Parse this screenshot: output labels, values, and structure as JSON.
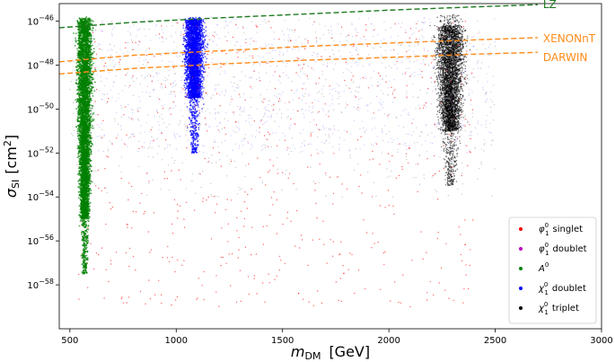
{
  "chart_data": {
    "type": "scatter",
    "title": "",
    "xlabel": {
      "main": "m",
      "sub": "DM",
      "unit": "[GeV]"
    },
    "ylabel": {
      "main": "σ",
      "sub": "SI",
      "unit": "[cm",
      "unit_sup": "2",
      "unit_close": "]"
    },
    "x_range": [
      450,
      3000
    ],
    "y_log_range": [
      -60,
      -45.2
    ],
    "x_ticks": [
      {
        "value": 500,
        "label": "500"
      },
      {
        "value": 1000,
        "label": "1000"
      },
      {
        "value": 1500,
        "label": "1500"
      },
      {
        "value": 2000,
        "label": "2000"
      },
      {
        "value": 2500,
        "label": "2500"
      },
      {
        "value": 3000,
        "label": "3000"
      }
    ],
    "y_ticks": [
      {
        "exp": -46,
        "base": "10",
        "sup": "−46"
      },
      {
        "exp": -48,
        "base": "10",
        "sup": "−48"
      },
      {
        "exp": -50,
        "base": "10",
        "sup": "−50"
      },
      {
        "exp": -52,
        "base": "10",
        "sup": "−52"
      },
      {
        "exp": -54,
        "base": "10",
        "sup": "−54"
      },
      {
        "exp": -56,
        "base": "10",
        "sup": "−56"
      },
      {
        "exp": -58,
        "base": "10",
        "sup": "−58"
      }
    ],
    "curves": [
      {
        "name": "LZ",
        "color": "#1f7a1f",
        "x": [
          450,
          800,
          1200,
          1600,
          2000,
          2400,
          2700
        ],
        "log_y": [
          -46.3,
          -46.05,
          -45.85,
          -45.68,
          -45.5,
          -45.35,
          -45.25
        ],
        "label_x": 2700,
        "label_log_y": -45.25
      },
      {
        "name": "XENONnT",
        "color": "#ff8c1a",
        "x": [
          450,
          800,
          1200,
          1600,
          2000,
          2400,
          2700
        ],
        "log_y": [
          -47.85,
          -47.55,
          -47.35,
          -47.15,
          -47.0,
          -46.85,
          -46.75
        ],
        "label_x": 2700,
        "label_log_y": -46.8
      },
      {
        "name": "DARWIN",
        "color": "#ff8c1a",
        "x": [
          450,
          800,
          1200,
          1600,
          2000,
          2400,
          2700
        ],
        "log_y": [
          -48.4,
          -48.15,
          -47.95,
          -47.78,
          -47.65,
          -47.5,
          -47.42
        ],
        "label_x": 2700,
        "label_log_y": -47.65
      }
    ],
    "series": [
      {
        "name": "singlet",
        "legend_symbol": "φ",
        "legend_sub": "1",
        "legend_sup": "0",
        "color": "#ff0000"
      },
      {
        "name": "doublet",
        "legend_symbol": "φ",
        "legend_sub": "1",
        "legend_sup": "0",
        "color": "#bf00bf"
      },
      {
        "name": "",
        "legend_symbol": "A",
        "legend_sub": "",
        "legend_sup": "0",
        "color": "#008000"
      },
      {
        "name": "doublet",
        "legend_symbol": "χ",
        "legend_sub": "1",
        "legend_sup": "0",
        "color": "#0000ff"
      },
      {
        "name": "triplet",
        "legend_symbol": "χ",
        "legend_sub": "1",
        "legend_sup": "0",
        "color": "#000000"
      }
    ],
    "clusters": [
      {
        "series": 4,
        "count": 4500,
        "x_center": 2290,
        "x_spread": 55,
        "log_y_range": [
          -53.5,
          -45.7
        ],
        "dense_log_y": [
          -51,
          -46.2
        ],
        "alpha": 0.55,
        "r": 0.7
      },
      {
        "series": 3,
        "count": 900,
        "x_range": [
          600,
          2500
        ],
        "log_y_range": [
          -52,
          -45.8
        ],
        "alpha": 0.18,
        "r": 0.7
      },
      {
        "series": 3,
        "count": 3500,
        "x_center": 1085,
        "x_spread": 38,
        "log_y_range": [
          -52,
          -45.8
        ],
        "dense_log_y": [
          -49.5,
          -45.9
        ],
        "alpha": 0.7,
        "r": 0.8
      },
      {
        "series": 0,
        "count": 650,
        "x_range": [
          540,
          2400
        ],
        "log_y_range": [
          -59,
          -46
        ],
        "alpha": 0.6,
        "r": 0.7
      },
      {
        "series": 1,
        "count": 120,
        "x_range": [
          540,
          2450
        ],
        "log_y_range": [
          -52,
          -46
        ],
        "alpha": 0.35,
        "r": 0.6
      },
      {
        "series": 4,
        "count": 500,
        "x_range": [
          500,
          2500
        ],
        "log_y_range": [
          -54,
          -46
        ],
        "alpha": 0.25,
        "r": 0.6
      },
      {
        "series": 2,
        "count": 5500,
        "x_center": 570,
        "x_spread": 30,
        "log_y_range": [
          -57.5,
          -45.8
        ],
        "dense_log_y": [
          -55,
          -45.9
        ],
        "alpha": 0.7,
        "r": 0.9
      }
    ],
    "legend_position": "lower-right",
    "grid": false
  }
}
